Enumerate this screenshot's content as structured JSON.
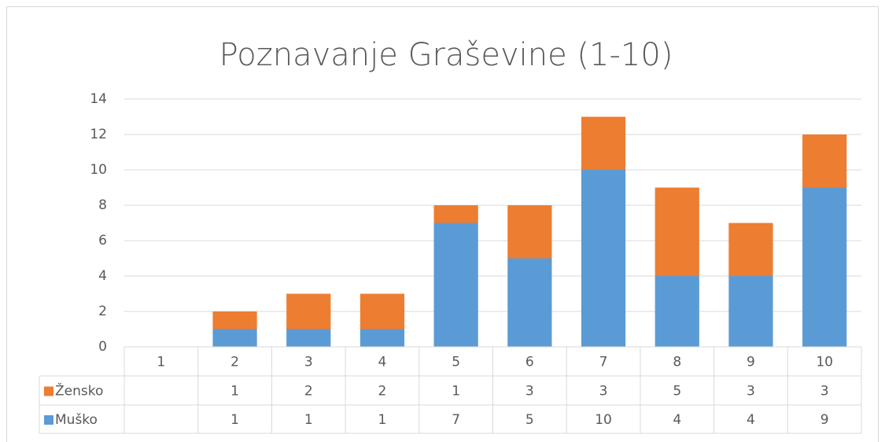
{
  "chart_data": {
    "type": "stacked_bar",
    "title": "Poznavanje Graševine (1-10)",
    "categories": [
      "1",
      "2",
      "3",
      "4",
      "5",
      "6",
      "7",
      "8",
      "9",
      "10"
    ],
    "series": [
      {
        "name": "Muško",
        "color": "#5b9bd5",
        "values": [
          null,
          1,
          1,
          1,
          7,
          5,
          10,
          4,
          4,
          9
        ]
      },
      {
        "name": "Žensko",
        "color": "#ed7d31",
        "values": [
          null,
          1,
          2,
          2,
          1,
          3,
          3,
          5,
          3,
          3
        ]
      }
    ],
    "ylim": [
      0,
      14
    ],
    "yticks": [
      0,
      2,
      4,
      6,
      8,
      10,
      12,
      14
    ],
    "grid": true,
    "data_table": true
  }
}
